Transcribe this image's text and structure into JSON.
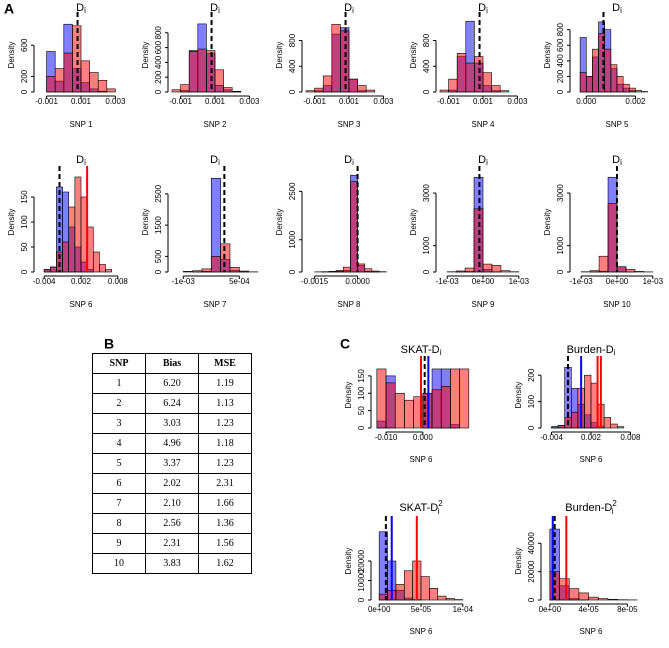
{
  "panel_labels": [
    "A",
    "B",
    "C"
  ],
  "chart_data": [
    {
      "type": "histogram",
      "title": "D",
      "title_sub": "i",
      "xlabel": "SNP 1",
      "ylabel": "Density",
      "bins": [
        -0.001,
        -0.0005,
        0,
        0.0005,
        0.001,
        0.0015,
        0.002,
        0.0025,
        0.003
      ],
      "series": [
        {
          "color": "rgba(0,0,255,0.5)",
          "values": [
            520,
            140,
            870,
            300,
            120,
            40,
            10,
            0
          ]
        },
        {
          "color": "rgba(255,0,0,0.5)",
          "values": [
            200,
            300,
            500,
            850,
            400,
            250,
            150,
            40
          ]
        }
      ],
      "xlim": [
        -0.0015,
        0.0035
      ],
      "xticks": [
        -0.001,
        0.001,
        0.003
      ],
      "ylim": [
        0,
        950
      ],
      "yticks": [
        0,
        200,
        600
      ],
      "vlines": [
        {
          "value": 0.0008,
          "color": "#000000",
          "dashed": true
        }
      ]
    },
    {
      "type": "histogram",
      "title": "D",
      "title_sub": "i",
      "xlabel": "SNP 2",
      "ylabel": "Density",
      "bins": [
        -0.0015,
        -0.001,
        -0.0005,
        0,
        0.0005,
        0.001,
        0.0015,
        0.002,
        0.0025
      ],
      "series": [
        {
          "color": "rgba(0,0,255,0.5)",
          "values": [
            0,
            20,
            560,
            920,
            520,
            90,
            30,
            5
          ]
        },
        {
          "color": "rgba(255,0,0,0.5)",
          "values": [
            30,
            100,
            550,
            580,
            560,
            300,
            60,
            10
          ]
        }
      ],
      "xlim": [
        -0.0015,
        0.0035
      ],
      "xticks": [
        -0.001,
        0.001,
        0.003
      ],
      "ylim": [
        0,
        1000
      ],
      "yticks": [
        0,
        200,
        400,
        600,
        800
      ],
      "vlines": [
        {
          "value": 0.0008,
          "color": "#000000",
          "dashed": true
        }
      ]
    },
    {
      "type": "histogram",
      "title": "D",
      "title_sub": "i",
      "xlabel": "SNP 3",
      "ylabel": "Density",
      "bins": [
        -0.0015,
        -0.001,
        -0.0005,
        0,
        0.0005,
        0.001,
        0.0015,
        0.002,
        0.0025
      ],
      "series": [
        {
          "color": "rgba(0,0,255,0.5)",
          "values": [
            0,
            20,
            100,
            900,
            1000,
            200,
            20,
            0
          ]
        },
        {
          "color": "rgba(255,0,0,0.5)",
          "values": [
            20,
            60,
            250,
            1050,
            950,
            200,
            100,
            30
          ]
        }
      ],
      "xlim": [
        -0.0015,
        0.0035
      ],
      "xticks": [
        -0.001,
        0.001,
        0.003
      ],
      "ylim": [
        0,
        1150
      ],
      "yticks": [
        0,
        400,
        800
      ],
      "vlines": [
        {
          "value": 0.0008,
          "color": "#000000",
          "dashed": true
        }
      ]
    },
    {
      "type": "histogram",
      "title": "D",
      "title_sub": "i",
      "xlabel": "SNP 4",
      "ylabel": "Density",
      "bins": [
        -0.0015,
        -0.001,
        -0.0005,
        0,
        0.0005,
        0.001,
        0.0015,
        0.002,
        0.0025
      ],
      "series": [
        {
          "color": "rgba(0,0,255,0.5)",
          "values": [
            0,
            30,
            550,
            1100,
            450,
            100,
            20,
            0
          ]
        },
        {
          "color": "rgba(255,0,0,0.5)",
          "values": [
            30,
            200,
            600,
            450,
            550,
            300,
            100,
            20
          ]
        }
      ],
      "xlim": [
        -0.0015,
        0.0035
      ],
      "xticks": [
        -0.001,
        0.001,
        0.003
      ],
      "ylim": [
        0,
        1150
      ],
      "yticks": [
        0,
        400,
        800
      ],
      "vlines": [
        {
          "value": 0.0008,
          "color": "#000000",
          "dashed": true
        }
      ]
    },
    {
      "type": "histogram",
      "title": "D",
      "title_sub": "i",
      "xlabel": "SNP 5",
      "ylabel": "Density",
      "bins": [
        -0.00025,
        0,
        0.00025,
        0.0005,
        0.00075,
        0.001,
        0.00125,
        0.0015,
        0.00175,
        0.002,
        0.00225,
        0.0025
      ],
      "series": [
        {
          "color": "rgba(0,0,255,0.5)",
          "values": [
            700,
            200,
            450,
            900,
            800,
            300,
            100,
            50,
            20,
            0,
            0
          ]
        },
        {
          "color": "rgba(255,0,0,0.5)",
          "values": [
            250,
            200,
            550,
            750,
            550,
            350,
            200,
            100,
            50,
            20,
            5
          ]
        }
      ],
      "xlim": [
        -0.0005,
        0.003
      ],
      "xticks": [
        {
          "value": 0,
          "label": "0.000"
        },
        0.002
      ],
      "ylim": [
        0,
        950
      ],
      "yticks": [
        0,
        200,
        400,
        600,
        800
      ],
      "vlines": [
        {
          "value": 0.0007,
          "color": "#000000",
          "dashed": true
        }
      ]
    },
    {
      "type": "histogram",
      "title": "D",
      "title_sub": "i",
      "xlabel": "SNP 6",
      "ylabel": "Density",
      "bins": [
        -0.004,
        -0.003,
        -0.002,
        -0.001,
        0,
        0.001,
        0.002,
        0.003,
        0.004,
        0.005,
        0.006,
        0.007,
        0.008
      ],
      "series": [
        {
          "color": "rgba(0,0,255,0.5)",
          "values": [
            5,
            10,
            170,
            160,
            90,
            50,
            20,
            5,
            0,
            0,
            0,
            0
          ]
        },
        {
          "color": "rgba(255,0,0,0.5)",
          "values": [
            5,
            10,
            40,
            60,
            130,
            190,
            150,
            90,
            40,
            15,
            5,
            0
          ]
        }
      ],
      "xlim": [
        -0.005,
        0.009
      ],
      "xticks": [
        -0.004,
        0.002,
        0.008
      ],
      "ylim": [
        0,
        200
      ],
      "yticks": [
        0,
        50,
        100,
        150
      ],
      "vlines": [
        {
          "value": -0.0015,
          "color": "#000000",
          "dashed": true
        },
        {
          "value": 0.003,
          "color": "#ff0000",
          "dashed": false
        }
      ]
    },
    {
      "type": "histogram",
      "title": "D",
      "title_sub": "i",
      "xlabel": "SNP 7",
      "ylabel": "Density",
      "bins": [
        -0.001,
        -0.00075,
        -0.0005,
        -0.00025,
        0,
        0.00025,
        0.0005,
        0.00075,
        0.001
      ],
      "series": [
        {
          "color": "rgba(0,0,255,0.5)",
          "values": [
            0,
            5,
            20,
            3000,
            400,
            50,
            5,
            0
          ]
        },
        {
          "color": "rgba(255,0,0,0.5)",
          "values": [
            20,
            40,
            100,
            500,
            900,
            150,
            30,
            5
          ]
        }
      ],
      "xlim": [
        -0.0013,
        0.001
      ],
      "xticks": [
        {
          "value": -0.001,
          "label": "-1e-03"
        },
        {
          "value": 0.0005,
          "label": "5e-04"
        }
      ],
      "ylim": [
        0,
        3200
      ],
      "yticks": [
        0,
        500,
        1500,
        2500
      ],
      "vlines": [
        {
          "value": 0.0001,
          "color": "#000000",
          "dashed": true
        }
      ]
    },
    {
      "type": "histogram",
      "title": "D",
      "title_sub": "i",
      "xlabel": "SNP 8",
      "ylabel": "Density",
      "bins": [
        -0.0015,
        -0.00125,
        -0.001,
        -0.00075,
        -0.0005,
        -0.00025,
        0,
        0.00025,
        0.0005,
        0.00075,
        0.001
      ],
      "series": [
        {
          "color": "rgba(0,0,255,0.5)",
          "values": [
            0,
            2,
            5,
            20,
            50,
            3000,
            200,
            20,
            5,
            0
          ]
        },
        {
          "color": "rgba(255,0,0,0.5)",
          "values": [
            5,
            10,
            20,
            50,
            150,
            2800,
            250,
            100,
            30,
            10
          ]
        }
      ],
      "xlim": [
        -0.0018,
        0.0012
      ],
      "xticks": [
        -0.0015,
        {
          "value": 0,
          "label": "0.0000"
        }
      ],
      "ylim": [
        0,
        3100
      ],
      "yticks": [
        0,
        1000,
        2500
      ],
      "vlines": [
        {
          "value": 0,
          "color": "#000000",
          "dashed": true
        }
      ]
    },
    {
      "type": "histogram",
      "title": "D",
      "title_sub": "i",
      "xlabel": "SNP 9",
      "ylabel": "Density",
      "bins": [
        -0.001,
        -0.00075,
        -0.0005,
        -0.00025,
        0,
        0.00025,
        0.0005,
        0.00075,
        0.001
      ],
      "series": [
        {
          "color": "rgba(0,0,255,0.5)",
          "values": [
            0,
            5,
            20,
            3600,
            100,
            10,
            0,
            0
          ]
        },
        {
          "color": "rgba(255,0,0,0.5)",
          "values": [
            10,
            40,
            150,
            2400,
            300,
            250,
            50,
            10
          ]
        }
      ],
      "xlim": [
        -0.0012,
        0.0012
      ],
      "xticks": [
        {
          "value": -0.001,
          "label": "-1e-03"
        },
        {
          "value": 0,
          "label": "0e+00"
        },
        {
          "value": 0.001,
          "label": "1e-03"
        }
      ],
      "ylim": [
        0,
        3800
      ],
      "yticks": [
        0,
        1000,
        3000
      ],
      "vlines": [
        {
          "value": -0.0001,
          "color": "#000000",
          "dashed": true
        }
      ]
    },
    {
      "type": "histogram",
      "title": "D",
      "title_sub": "i",
      "xlabel": "SNP 10",
      "ylabel": "Density",
      "bins": [
        -0.001,
        -0.00075,
        -0.0005,
        -0.00025,
        0,
        0.00025,
        0.0005,
        0.00075,
        0.001
      ],
      "series": [
        {
          "color": "rgba(0,0,255,0.5)",
          "values": [
            0,
            5,
            30,
            3600,
            200,
            5,
            0,
            0
          ]
        },
        {
          "color": "rgba(255,0,0,0.5)",
          "values": [
            10,
            50,
            600,
            2600,
            200,
            100,
            20,
            5
          ]
        }
      ],
      "xlim": [
        -0.0012,
        0.0012
      ],
      "xticks": [
        {
          "value": -0.001,
          "label": "-1e-03"
        },
        {
          "value": 0,
          "label": "0e+00"
        },
        {
          "value": 0.001,
          "label": "1e-03"
        }
      ],
      "ylim": [
        0,
        3800
      ],
      "yticks": [
        0,
        1000,
        3000
      ],
      "vlines": [
        {
          "value": 0,
          "color": "#000000",
          "dashed": true
        }
      ]
    },
    {
      "type": "histogram",
      "title": "SKAT-D",
      "title_sub": "i",
      "xlabel": "SNP 6",
      "ylabel": "Density",
      "bins": [
        -0.0125,
        -0.01,
        -0.0075,
        -0.005,
        -0.0025,
        0,
        0.0025,
        0.005,
        0.0075,
        0.01,
        0.0125
      ],
      "series": [
        {
          "color": "rgba(0,0,255,0.5)",
          "values": [
            20,
            150,
            0,
            0,
            0,
            100,
            170,
            170,
            10,
            0
          ]
        },
        {
          "color": "rgba(255,0,0,0.5)",
          "values": [
            170,
            130,
            100,
            80,
            90,
            100,
            110,
            120,
            170,
            170
          ]
        }
      ],
      "xlim": [
        -0.013,
        0.012
      ],
      "xticks": [
        {
          "value": -0.01,
          "label": "-0.010"
        },
        {
          "value": 0,
          "label": "0.000"
        }
      ],
      "ylim": [
        0,
        190
      ],
      "yticks": [
        0,
        50,
        100,
        150
      ],
      "vlines": [
        {
          "value": 0.0005,
          "color": "#000000",
          "dashed": true
        },
        {
          "value": 0.0015,
          "color": "#0000ff",
          "dashed": false
        },
        {
          "value": -0.0005,
          "color": "#ff0000",
          "dashed": false
        }
      ]
    },
    {
      "type": "histogram",
      "title": "Burden-D",
      "title_sub": "i",
      "xlabel": "SNP 6",
      "ylabel": "Density",
      "bins": [
        -0.004,
        -0.003,
        -0.002,
        -0.001,
        0,
        0.001,
        0.002,
        0.003,
        0.004,
        0.005,
        0.006,
        0.007,
        0.008
      ],
      "series": [
        {
          "color": "rgba(0,0,255,0.5)",
          "values": [
            5,
            10,
            230,
            150,
            90,
            50,
            20,
            5,
            0,
            0,
            0,
            0
          ]
        },
        {
          "color": "rgba(255,0,0,0.5)",
          "values": [
            5,
            10,
            40,
            60,
            150,
            200,
            170,
            90,
            40,
            15,
            5,
            0
          ]
        }
      ],
      "xlim": [
        -0.005,
        0.009
      ],
      "xticks": [
        -0.004,
        0.002,
        0.008
      ],
      "ylim": [
        0,
        250
      ],
      "yticks": [
        0,
        100,
        200
      ],
      "vlines": [
        {
          "value": -0.0015,
          "color": "#000000",
          "dashed": true
        },
        {
          "value": 0.0005,
          "color": "#0000ff",
          "dashed": false
        },
        {
          "value": 0.003,
          "color": "#ff0000",
          "dashed": false
        },
        {
          "value": 0.0035,
          "color": "#ff0000",
          "dashed": false
        }
      ]
    },
    {
      "type": "histogram",
      "title": "SKAT-D",
      "title_sub": "i",
      "title_sup": "2",
      "xlabel": "SNP 6",
      "ylabel": "Density",
      "bins": [
        0,
        1e-05,
        2e-05,
        3e-05,
        4e-05,
        5e-05,
        6e-05,
        7e-05,
        8e-05,
        9e-05,
        0.0001
      ],
      "series": [
        {
          "color": "rgba(0,0,255,0.5)",
          "values": [
            35000,
            20000,
            5000,
            1000,
            200,
            0,
            0,
            0,
            0,
            0
          ]
        },
        {
          "color": "rgba(255,0,0,0.5)",
          "values": [
            3000,
            5000,
            8000,
            15000,
            20000,
            12000,
            6000,
            2000,
            800,
            200
          ]
        }
      ],
      "xlim": [
        -5e-06,
        0.000105
      ],
      "xticks": [
        {
          "value": 0,
          "label": "0e+00"
        },
        {
          "value": 5e-05,
          "label": "5e-05"
        },
        {
          "value": 0.0001,
          "label": "1e-04"
        }
      ],
      "ylim": [
        0,
        40000
      ],
      "yticks": [
        0,
        10000,
        20000
      ],
      "vlines": [
        {
          "value": 8e-06,
          "color": "#000000",
          "dashed": true
        },
        {
          "value": 1.5e-05,
          "color": "#0000ff",
          "dashed": false
        },
        {
          "value": 4.5e-05,
          "color": "#ff0000",
          "dashed": false
        }
      ]
    },
    {
      "type": "histogram",
      "title": "Burden-D",
      "title_sub": "i",
      "title_sup": "2",
      "xlabel": "SNP 6",
      "ylabel": "Density",
      "bins": [
        0,
        1e-05,
        2e-05,
        3e-05,
        4e-05,
        5e-05,
        6e-05,
        7e-05,
        8e-05,
        9e-05
      ],
      "series": [
        {
          "color": "rgba(0,0,255,0.5)",
          "values": [
            50000,
            10000,
            1000,
            100,
            0,
            0,
            0,
            0,
            0
          ]
        },
        {
          "color": "rgba(255,0,0,0.5)",
          "values": [
            20000,
            15000,
            8000,
            5000,
            2000,
            1000,
            500,
            200,
            100
          ]
        }
      ],
      "xlim": [
        -5e-06,
        9e-05
      ],
      "xticks": [
        {
          "value": 0,
          "label": "0e+00"
        },
        {
          "value": 4e-05,
          "label": "4e-05"
        },
        {
          "value": 8e-05,
          "label": "8e-05"
        }
      ],
      "ylim": [
        0,
        55000
      ],
      "yticks": [
        0,
        20000,
        40000
      ],
      "vlines": [
        {
          "value": 5e-06,
          "color": "#000000",
          "dashed": true
        },
        {
          "value": 3e-06,
          "color": "#0000ff",
          "dashed": false
        },
        {
          "value": 1.7e-05,
          "color": "#ff0000",
          "dashed": false
        }
      ]
    }
  ],
  "table": {
    "columns": [
      "SNP",
      "Bias",
      "MSE"
    ],
    "rows": [
      [
        "1",
        "6.20",
        "1.19"
      ],
      [
        "2",
        "6.24",
        "1.13"
      ],
      [
        "3",
        "3.03",
        "1.23"
      ],
      [
        "4",
        "4.96",
        "1.18"
      ],
      [
        "5",
        "3.37",
        "1.23"
      ],
      [
        "6",
        "2.02",
        "2.31"
      ],
      [
        "7",
        "2.10",
        "1.66"
      ],
      [
        "8",
        "2.56",
        "1.36"
      ],
      [
        "9",
        "2.31",
        "1.56"
      ],
      [
        "10",
        "3.83",
        "1.62"
      ]
    ]
  }
}
